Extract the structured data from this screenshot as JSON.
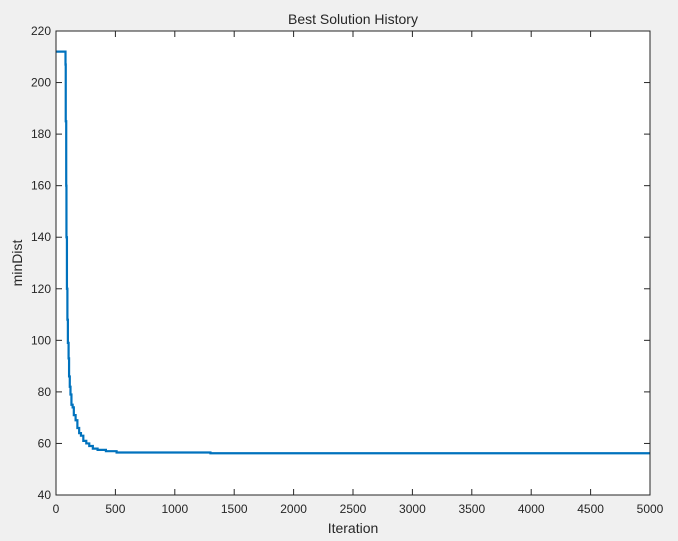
{
  "chart_data": {
    "type": "line",
    "title": "Best Solution History",
    "xlabel": "Iteration",
    "ylabel": "minDist",
    "xlim": [
      0,
      5000
    ],
    "ylim": [
      40,
      220
    ],
    "xticks": [
      0,
      500,
      1000,
      1500,
      2000,
      2500,
      3000,
      3500,
      4000,
      4500,
      5000
    ],
    "yticks": [
      40,
      60,
      80,
      100,
      120,
      140,
      160,
      180,
      200,
      220
    ],
    "xtick_labels": [
      "0",
      "500",
      "1000",
      "1500",
      "2000",
      "2500",
      "3000",
      "3500",
      "4000",
      "4500",
      "5000"
    ],
    "ytick_labels": [
      "40",
      "60",
      "80",
      "100",
      "120",
      "140",
      "160",
      "180",
      "200",
      "220"
    ],
    "grid": false,
    "legend": "none",
    "colors": {
      "series": "#0072bd",
      "axes_background": "#ffffff",
      "figure_background": "#f0f0f0",
      "axis_color": "#262626"
    },
    "series": [
      {
        "x": [
          0,
          80,
          80,
          82,
          82,
          86,
          86,
          88,
          88,
          92,
          92,
          96,
          96,
          100,
          100,
          106,
          106,
          110,
          110,
          116,
          116,
          122,
          122,
          130,
          130,
          140,
          140,
          150,
          150,
          165,
          165,
          180,
          180,
          195,
          195,
          210,
          210,
          230,
          230,
          255,
          255,
          280,
          280,
          310,
          310,
          350,
          350,
          420,
          420,
          510,
          510,
          1300,
          1300,
          5000
        ],
        "y": [
          212,
          212,
          207,
          207,
          185,
          185,
          160,
          160,
          140,
          140,
          120,
          120,
          108,
          108,
          99,
          99,
          93,
          93,
          86,
          86,
          82,
          82,
          79,
          79,
          75,
          75,
          74,
          74,
          71,
          71,
          69,
          69,
          66,
          66,
          64,
          64,
          63,
          63,
          61,
          61,
          60,
          60,
          59,
          59,
          58,
          58,
          57.5,
          57.5,
          57,
          57,
          56.5,
          56.5,
          56.2,
          56.2
        ]
      }
    ]
  }
}
